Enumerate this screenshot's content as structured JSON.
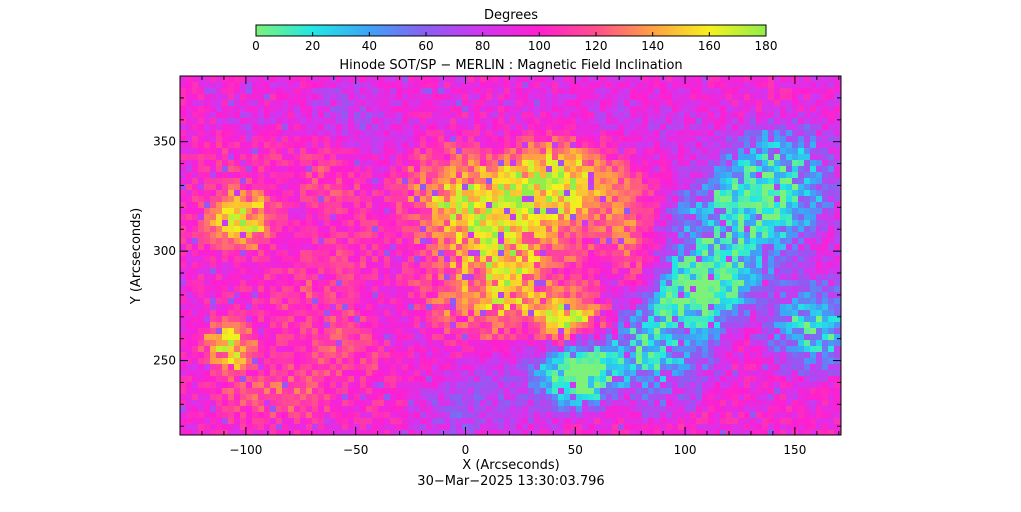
{
  "chart_data": {
    "type": "heatmap",
    "title": "Hinode SOT/SP − MERLIN : Magnetic Field Inclination",
    "xlabel": "X (Arcseconds)",
    "ylabel": "Y (Arcseconds)",
    "xlim": [
      -130,
      171
    ],
    "ylim": [
      216,
      380
    ],
    "xticks": [
      -100,
      -50,
      0,
      50,
      100,
      150
    ],
    "yticks": [
      250,
      300,
      350
    ],
    "colorbar": {
      "label": "Degrees",
      "range": [
        0,
        180
      ],
      "ticks": [
        0,
        20,
        40,
        60,
        80,
        100,
        120,
        140,
        160,
        180
      ],
      "colors": [
        "#7cf27a",
        "#22e7e3",
        "#3da3f7",
        "#8b5ef2",
        "#d235f0",
        "#ff1fd0",
        "#ff4f8c",
        "#ffa043",
        "#f5f21e",
        "#90ee4a"
      ]
    },
    "timestamp": "30−Mar−2025 13:30:03.796"
  }
}
